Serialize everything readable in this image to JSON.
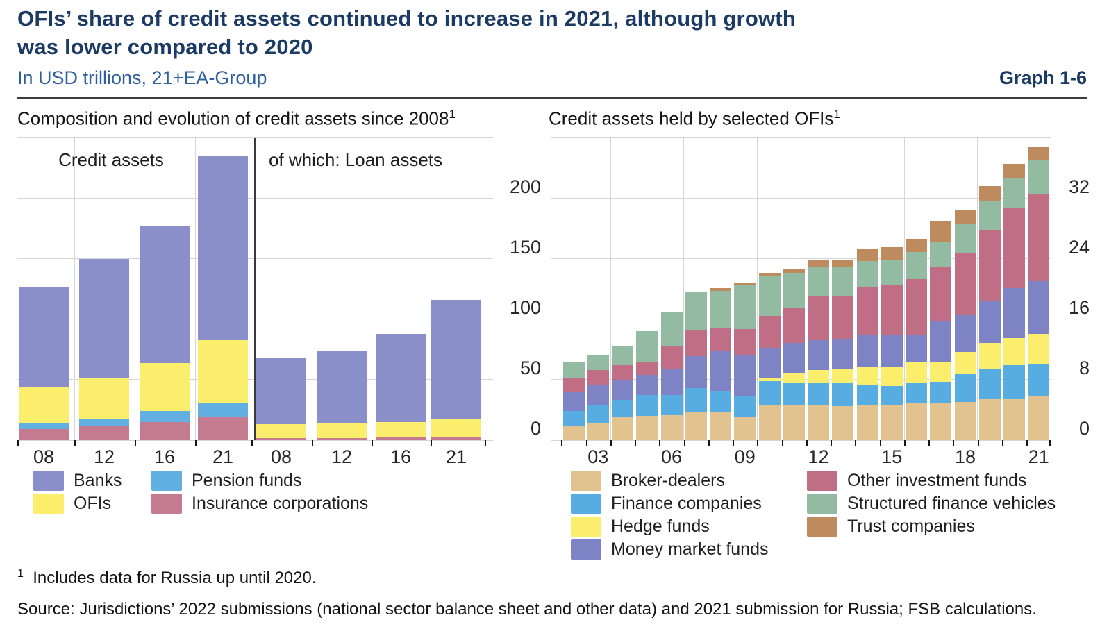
{
  "header": {
    "title_line1": "OFIs’ share of credit assets continued to increase in 2021, although growth",
    "title_line2": "was lower compared to 2020",
    "subtitle": "In USD trillions, 21+EA-Group",
    "graph_label": "Graph 1-6"
  },
  "footnotes": {
    "note1_sup": "1",
    "note1": "Includes data for Russia up until 2020.",
    "source": "Source: Jurisdictions’ 2022 submissions (national sector balance sheet and other data) and 2021 submission for Russia; FSB calculations."
  },
  "colors": {
    "Banks": "#8a8fc9",
    "OFIs": "#fbee6d",
    "Pension funds": "#62b0e2",
    "Insurance corporations": "#c47a90",
    "Broker-dealers": "#e2c28f",
    "Finance companies": "#57ace2",
    "Hedge funds": "#fbee6d",
    "Money market funds": "#7d83c5",
    "Other investment funds": "#c06e86",
    "Structured finance vehicles": "#93bba1",
    "Trust companies": "#bd8b5d"
  },
  "chart_data": [
    {
      "type": "bar",
      "stacked": true,
      "title": "Composition and evolution of credit assets since 2008",
      "title_sup": "1",
      "ylabel": "USD trillions",
      "ylim": [
        0,
        250
      ],
      "y_ticks": [
        "0",
        "50",
        "100",
        "150",
        "200"
      ],
      "grid": true,
      "legend_position": "bottom",
      "groups": [
        {
          "label": "Credit assets",
          "categories": [
            "08",
            "12",
            "16",
            "21"
          ],
          "series": [
            {
              "name": "Insurance corporations",
              "values": [
                9,
                12,
                15,
                19
              ]
            },
            {
              "name": "Pension funds",
              "values": [
                5,
                6,
                9,
                12
              ]
            },
            {
              "name": "OFIs",
              "values": [
                30,
                34,
                40,
                52
              ]
            },
            {
              "name": "Banks",
              "values": [
                83,
                98,
                113,
                152
              ]
            }
          ]
        },
        {
          "label": "of which: Loan assets",
          "categories": [
            "08",
            "12",
            "16",
            "21"
          ],
          "series": [
            {
              "name": "Insurance corporations",
              "values": [
                2,
                2,
                3,
                2.5
              ]
            },
            {
              "name": "Pension funds",
              "values": [
                0,
                0,
                0,
                0
              ]
            },
            {
              "name": "OFIs",
              "values": [
                11,
                12,
                12,
                15.5
              ]
            },
            {
              "name": "Banks",
              "values": [
                55,
                60,
                73,
                98
              ]
            }
          ]
        }
      ],
      "legend_columns": [
        [
          "Banks",
          "OFIs"
        ],
        [
          "Pension funds",
          "Insurance corporations"
        ]
      ]
    },
    {
      "type": "bar",
      "stacked": true,
      "title": "Credit assets held by selected OFIs",
      "title_sup": "1",
      "ylabel": "USD trillions",
      "ylim": [
        0,
        40
      ],
      "y_ticks": [
        "0",
        "8",
        "16",
        "24",
        "32"
      ],
      "grid": true,
      "legend_position": "bottom",
      "x": [
        "02",
        "03",
        "04",
        "05",
        "06",
        "07",
        "08",
        "09",
        "10",
        "11",
        "12",
        "13",
        "14",
        "15",
        "16",
        "17",
        "18",
        "19",
        "20",
        "21"
      ],
      "x_tick_labels": [
        "03",
        "06",
        "09",
        "12",
        "15",
        "18",
        "21"
      ],
      "series": [
        {
          "name": "Broker-dealers",
          "values": [
            1.8,
            2.3,
            3.0,
            3.2,
            3.3,
            3.8,
            3.7,
            3.0,
            4.7,
            4.6,
            4.7,
            4.5,
            4.7,
            4.7,
            4.9,
            5.0,
            5.1,
            5.4,
            5.5,
            5.9
          ]
        },
        {
          "name": "Finance companies",
          "values": [
            2.1,
            2.3,
            2.3,
            2.8,
            2.7,
            3.1,
            2.8,
            2.9,
            3.1,
            2.9,
            2.9,
            3.1,
            2.6,
            2.5,
            2.6,
            2.7,
            3.7,
            4.0,
            4.4,
            4.2
          ]
        },
        {
          "name": "Hedge funds",
          "values": [
            0,
            0,
            0,
            0,
            0,
            0,
            0,
            0,
            0.4,
            1.4,
            1.7,
            1.8,
            2.4,
            2.5,
            2.9,
            2.7,
            2.9,
            3.5,
            3.6,
            4.0
          ]
        },
        {
          "name": "Money market funds",
          "values": [
            2.5,
            2.8,
            2.6,
            2.6,
            3.5,
            4.2,
            5.3,
            5.3,
            4.0,
            4.0,
            3.9,
            3.9,
            4.2,
            4.2,
            3.5,
            5.3,
            4.9,
            5.6,
            6.6,
            7.0
          ]
        },
        {
          "name": "Other investment funds",
          "values": [
            1.8,
            1.9,
            2.0,
            1.7,
            3.0,
            3.4,
            3.0,
            3.5,
            4.3,
            4.6,
            5.8,
            5.7,
            6.3,
            6.6,
            7.4,
            7.3,
            8.1,
            9.4,
            10.7,
            11.5
          ]
        },
        {
          "name": "Structured finance vehicles",
          "values": [
            2.1,
            2.0,
            2.6,
            4.1,
            4.5,
            5.1,
            5.0,
            5.8,
            5.2,
            4.7,
            3.9,
            4.0,
            3.5,
            3.4,
            3.6,
            3.3,
            4.0,
            3.8,
            3.9,
            4.5
          ]
        },
        {
          "name": "Trust companies",
          "values": [
            0,
            0,
            0,
            0,
            0,
            0,
            0.3,
            0.4,
            0.5,
            0.5,
            0.9,
            0.9,
            1.7,
            1.7,
            1.8,
            2.7,
            1.8,
            2.0,
            1.9,
            1.7
          ]
        }
      ],
      "legend_columns": [
        [
          "Broker-dealers",
          "Finance companies",
          "Hedge funds",
          "Money market funds"
        ],
        [
          "Other investment funds",
          "Structured finance vehicles",
          "Trust companies"
        ]
      ]
    }
  ]
}
